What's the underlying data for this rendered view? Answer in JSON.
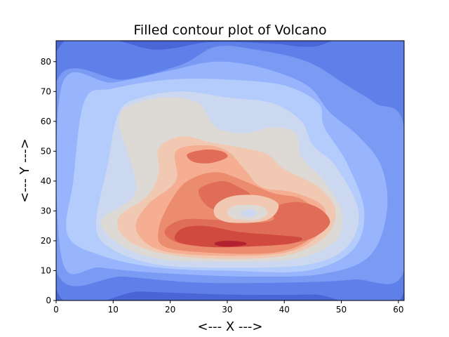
{
  "chart_data": {
    "type": "contourf",
    "title": "Filled contour plot of Volcano",
    "xlabel": "<--- X --->",
    "ylabel": "<--- Y --->",
    "xlim": [
      0,
      61
    ],
    "ylim": [
      0,
      87
    ],
    "x_ticks": [
      0,
      10,
      20,
      30,
      40,
      50,
      60
    ],
    "y_ticks": [
      0,
      10,
      20,
      30,
      40,
      50,
      60,
      70,
      80
    ],
    "colormap": "coolwarm",
    "grid": false,
    "legend": "none",
    "levels": [
      {
        "level": 1,
        "color": "#4a66d6",
        "polygon": [
          [
            0,
            87
          ],
          [
            61,
            87
          ],
          [
            61,
            0
          ],
          [
            0,
            0
          ]
        ]
      },
      {
        "level": 2,
        "color": "#5f80e8",
        "polygon": [
          [
            0,
            83
          ],
          [
            18,
            84
          ],
          [
            27,
            86.5
          ],
          [
            38,
            86
          ],
          [
            45,
            85
          ],
          [
            61,
            87
          ],
          [
            61,
            3
          ],
          [
            45,
            2
          ],
          [
            30,
            2
          ],
          [
            15,
            3
          ],
          [
            0,
            4
          ]
        ]
      },
      {
        "level": 3,
        "color": "#7a9af4",
        "polygon": [
          [
            0,
            73
          ],
          [
            12,
            74
          ],
          [
            22,
            79
          ],
          [
            28,
            85
          ],
          [
            35,
            84
          ],
          [
            44,
            80
          ],
          [
            51,
            72
          ],
          [
            56,
            66
          ],
          [
            61,
            58
          ],
          [
            61,
            10
          ],
          [
            52,
            7
          ],
          [
            40,
            6
          ],
          [
            25,
            6
          ],
          [
            12,
            8
          ],
          [
            0,
            10
          ]
        ]
      },
      {
        "level": 4,
        "color": "#97b4fc",
        "polygon": [
          [
            1,
            72
          ],
          [
            10,
            73
          ],
          [
            20,
            77
          ],
          [
            28,
            80
          ],
          [
            36,
            78
          ],
          [
            44,
            72
          ],
          [
            48,
            63
          ],
          [
            53,
            55
          ],
          [
            57,
            45
          ],
          [
            58,
            30
          ],
          [
            55,
            15
          ],
          [
            47,
            9
          ],
          [
            35,
            8
          ],
          [
            20,
            9
          ],
          [
            8,
            11
          ],
          [
            1,
            14
          ]
        ]
      },
      {
        "level": 5,
        "color": "#b3ccfb",
        "polygon": [
          [
            5,
            67
          ],
          [
            10,
            71
          ],
          [
            20,
            74
          ],
          [
            30,
            74
          ],
          [
            40,
            72
          ],
          [
            46,
            66
          ],
          [
            47,
            58
          ],
          [
            51,
            46
          ],
          [
            54,
            30
          ],
          [
            52,
            17
          ],
          [
            44,
            10
          ],
          [
            30,
            10
          ],
          [
            18,
            11
          ],
          [
            8,
            15
          ],
          [
            2,
            22
          ],
          [
            3,
            40
          ]
        ]
      },
      {
        "level": 6,
        "color": "#ccd8f0",
        "polygon": [
          [
            11,
            63
          ],
          [
            15,
            68
          ],
          [
            22,
            70
          ],
          [
            30,
            68
          ],
          [
            38,
            66
          ],
          [
            43,
            60
          ],
          [
            45,
            52
          ],
          [
            49,
            45
          ],
          [
            53,
            30
          ],
          [
            51,
            18
          ],
          [
            44,
            12
          ],
          [
            30,
            11
          ],
          [
            18,
            12
          ],
          [
            10,
            17
          ],
          [
            7,
            25
          ],
          [
            9,
            45
          ]
        ]
      },
      {
        "level": 7,
        "color": "#ddd9d5",
        "polygon": [
          [
            11,
            60
          ],
          [
            14,
            66
          ],
          [
            20,
            68
          ],
          [
            25,
            66
          ],
          [
            28,
            58
          ],
          [
            33,
            56
          ],
          [
            38,
            58
          ],
          [
            42,
            56
          ],
          [
            43,
            48
          ],
          [
            47,
            40
          ],
          [
            50,
            30
          ],
          [
            49,
            20
          ],
          [
            42,
            14
          ],
          [
            30,
            13
          ],
          [
            18,
            14
          ],
          [
            11,
            19
          ],
          [
            8,
            27
          ],
          [
            14,
            37
          ]
        ]
      },
      {
        "level": 8,
        "color": "#f1c9b3",
        "polygon": [
          [
            18,
            51
          ],
          [
            22,
            55
          ],
          [
            27,
            53
          ],
          [
            33,
            51
          ],
          [
            37,
            49
          ],
          [
            40,
            44
          ],
          [
            46,
            38
          ],
          [
            49,
            30
          ],
          [
            47,
            21
          ],
          [
            40,
            15
          ],
          [
            28,
            14
          ],
          [
            18,
            16
          ],
          [
            12,
            21
          ],
          [
            11,
            28
          ],
          [
            16,
            35
          ],
          [
            18,
            43
          ]
        ]
      },
      {
        "level": 9,
        "color": "#f5ae91",
        "polygon": [
          [
            21,
            50
          ],
          [
            26,
            52
          ],
          [
            30,
            50
          ],
          [
            33,
            44
          ],
          [
            36,
            38
          ],
          [
            42,
            36
          ],
          [
            47,
            31
          ],
          [
            46,
            22
          ],
          [
            40,
            16
          ],
          [
            28,
            15
          ],
          [
            18,
            17
          ],
          [
            14,
            24
          ],
          [
            16,
            32
          ],
          [
            21,
            40
          ]
        ]
      },
      {
        "level": 10,
        "color": "#ec8c6f",
        "polygon": [
          [
            23,
            40
          ],
          [
            28,
            43
          ],
          [
            33,
            40
          ],
          [
            38,
            36
          ],
          [
            43,
            34
          ],
          [
            46,
            28
          ],
          [
            44,
            20
          ],
          [
            38,
            16
          ],
          [
            27,
            16
          ],
          [
            19,
            18
          ],
          [
            18,
            24
          ],
          [
            20,
            33
          ]
        ]
      },
      {
        "level": 11,
        "color": "#e06d57",
        "polygon": [
          [
            25,
            37
          ],
          [
            29,
            40
          ],
          [
            32,
            38
          ],
          [
            34,
            35
          ],
          [
            31,
            31
          ],
          [
            27,
            31
          ]
        ]
      },
      {
        "level": 11,
        "color": "#e06d57",
        "polygon": [
          [
            23,
            49
          ],
          [
            26,
            50.5
          ],
          [
            29,
            50
          ],
          [
            30,
            48
          ],
          [
            27,
            46
          ],
          [
            24,
            46.5
          ]
        ]
      },
      {
        "level": 11,
        "color": "#e06d57",
        "polygon": [
          [
            38,
            31
          ],
          [
            42,
            33
          ],
          [
            46,
            31
          ],
          [
            48,
            26
          ],
          [
            45,
            21
          ],
          [
            40,
            19
          ],
          [
            30,
            18
          ],
          [
            22,
            19
          ],
          [
            19,
            23
          ],
          [
            22,
            27
          ],
          [
            28,
            27
          ],
          [
            34,
            26
          ],
          [
            38,
            27
          ]
        ]
      },
      {
        "level": 12,
        "color": "#d04a3f",
        "polygon": [
          [
            22,
            24
          ],
          [
            26,
            25
          ],
          [
            32,
            23
          ],
          [
            38,
            22
          ],
          [
            43,
            21
          ],
          [
            41,
            19
          ],
          [
            33,
            18
          ],
          [
            26,
            18
          ],
          [
            21,
            20
          ]
        ]
      },
      {
        "level": 13,
        "color": "#b3202f",
        "polygon": [
          [
            28,
            19.5
          ],
          [
            30,
            20
          ],
          [
            33,
            19.5
          ],
          [
            33,
            18.5
          ],
          [
            30,
            18
          ],
          [
            28,
            18.5
          ]
        ]
      },
      {
        "level": 8,
        "color": "#f1c9b3",
        "polygon": [
          [
            28,
            32
          ],
          [
            31,
            35
          ],
          [
            36,
            35
          ],
          [
            39,
            32
          ],
          [
            37,
            27
          ],
          [
            31,
            26
          ],
          [
            28,
            28
          ]
        ]
      },
      {
        "level": 7,
        "color": "#ddd9d5",
        "polygon": [
          [
            30,
            30
          ],
          [
            32,
            32
          ],
          [
            36,
            31.5
          ],
          [
            37,
            29
          ],
          [
            35,
            27
          ],
          [
            31,
            27.5
          ]
        ]
      },
      {
        "level": 6,
        "color": "#ccd8f0",
        "polygon": [
          [
            32.3,
            29.5
          ],
          [
            33.5,
            30.5
          ],
          [
            35,
            30
          ],
          [
            35,
            28.5
          ],
          [
            33.5,
            28
          ],
          [
            32.3,
            28.7
          ]
        ]
      }
    ]
  }
}
